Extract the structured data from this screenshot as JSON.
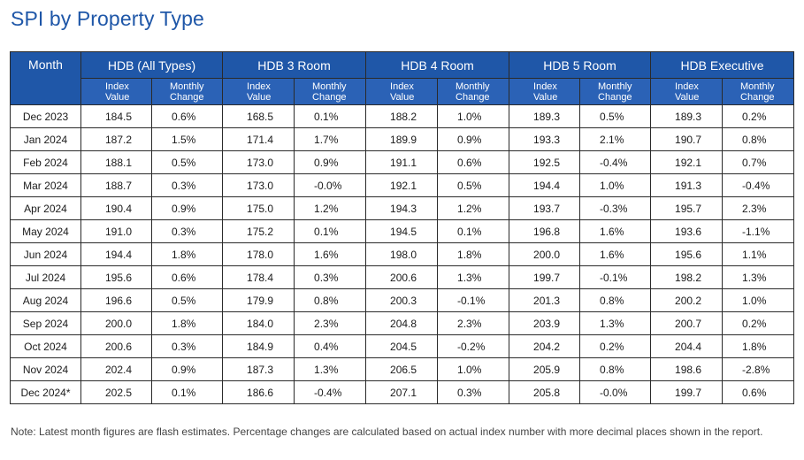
{
  "title": "SPI by Property Type",
  "table": {
    "month_header": "Month",
    "groups": [
      "HDB (All Types)",
      "HDB 3 Room",
      "HDB 4 Room",
      "HDB 5 Room",
      "HDB Executive"
    ],
    "sub_headers": {
      "index_line1": "Index",
      "index_line2": "Value",
      "change_line1": "Monthly",
      "change_line2": "Change"
    },
    "rows": [
      {
        "month": "Dec 2023",
        "values": [
          "184.5",
          "0.6%",
          "168.5",
          "0.1%",
          "188.2",
          "1.0%",
          "189.3",
          "0.5%",
          "189.3",
          "0.2%"
        ]
      },
      {
        "month": "Jan 2024",
        "values": [
          "187.2",
          "1.5%",
          "171.4",
          "1.7%",
          "189.9",
          "0.9%",
          "193.3",
          "2.1%",
          "190.7",
          "0.8%"
        ]
      },
      {
        "month": "Feb 2024",
        "values": [
          "188.1",
          "0.5%",
          "173.0",
          "0.9%",
          "191.1",
          "0.6%",
          "192.5",
          "-0.4%",
          "192.1",
          "0.7%"
        ]
      },
      {
        "month": "Mar 2024",
        "values": [
          "188.7",
          "0.3%",
          "173.0",
          "-0.0%",
          "192.1",
          "0.5%",
          "194.4",
          "1.0%",
          "191.3",
          "-0.4%"
        ]
      },
      {
        "month": "Apr 2024",
        "values": [
          "190.4",
          "0.9%",
          "175.0",
          "1.2%",
          "194.3",
          "1.2%",
          "193.7",
          "-0.3%",
          "195.7",
          "2.3%"
        ]
      },
      {
        "month": "May 2024",
        "values": [
          "191.0",
          "0.3%",
          "175.2",
          "0.1%",
          "194.5",
          "0.1%",
          "196.8",
          "1.6%",
          "193.6",
          "-1.1%"
        ]
      },
      {
        "month": "Jun 2024",
        "values": [
          "194.4",
          "1.8%",
          "178.0",
          "1.6%",
          "198.0",
          "1.8%",
          "200.0",
          "1.6%",
          "195.6",
          "1.1%"
        ]
      },
      {
        "month": "Jul 2024",
        "values": [
          "195.6",
          "0.6%",
          "178.4",
          "0.3%",
          "200.6",
          "1.3%",
          "199.7",
          "-0.1%",
          "198.2",
          "1.3%"
        ]
      },
      {
        "month": "Aug 2024",
        "values": [
          "196.6",
          "0.5%",
          "179.9",
          "0.8%",
          "200.3",
          "-0.1%",
          "201.3",
          "0.8%",
          "200.2",
          "1.0%"
        ]
      },
      {
        "month": "Sep 2024",
        "values": [
          "200.0",
          "1.8%",
          "184.0",
          "2.3%",
          "204.8",
          "2.3%",
          "203.9",
          "1.3%",
          "200.7",
          "0.2%"
        ]
      },
      {
        "month": "Oct 2024",
        "values": [
          "200.6",
          "0.3%",
          "184.9",
          "0.4%",
          "204.5",
          "-0.2%",
          "204.2",
          "0.2%",
          "204.4",
          "1.8%"
        ]
      },
      {
        "month": "Nov 2024",
        "values": [
          "202.4",
          "0.9%",
          "187.3",
          "1.3%",
          "206.5",
          "1.0%",
          "205.9",
          "0.8%",
          "198.6",
          "-2.8%"
        ]
      },
      {
        "month": "Dec 2024*",
        "values": [
          "202.5",
          "0.1%",
          "186.6",
          "-0.4%",
          "207.1",
          "0.3%",
          "205.8",
          "-0.0%",
          "199.7",
          "0.6%"
        ]
      }
    ]
  },
  "note": "Note: Latest month figures are flash estimates. Percentage changes are calculated based on actual index number with more decimal places shown in the report.",
  "colors": {
    "title": "#1f57a8",
    "header_bg": "#1f57a8",
    "subheader_bg": "#2b62b6",
    "border": "#2a2a2a"
  }
}
